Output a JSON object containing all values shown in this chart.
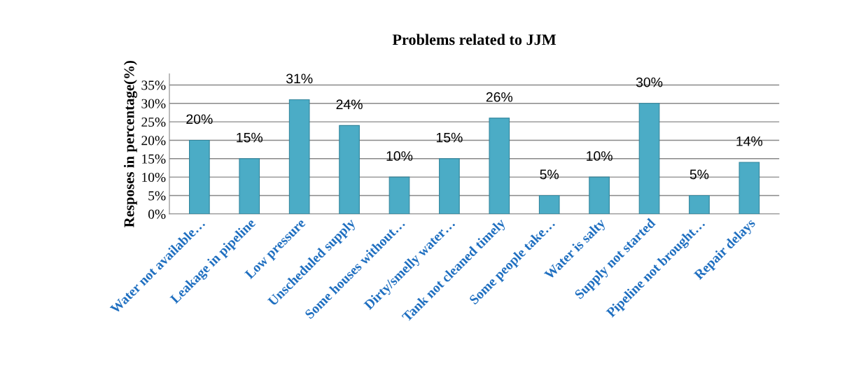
{
  "chart_data": {
    "type": "bar",
    "title": "Problems related to JJM",
    "ylabel": "Resposes in percentage(%)",
    "categories": [
      "Water not available…",
      "Leakage in pipeline",
      "Low pressure",
      "Unscheduled supply",
      "Some houses without…",
      "Dirty/smelly water…",
      "Tank not cleaned timely",
      "Some people take…",
      "Water is salty",
      "Supply not started",
      "Pipeline not brought…",
      "Repair delays"
    ],
    "values": [
      20,
      15,
      31,
      24,
      10,
      15,
      26,
      5,
      10,
      30,
      5,
      14
    ],
    "value_labels": [
      "20%",
      "15%",
      "31%",
      "24%",
      "10%",
      "15%",
      "26%",
      "5%",
      "10%",
      "30%",
      "5%",
      "14%"
    ],
    "color": "#4bacc6",
    "ylim": [
      0,
      38
    ],
    "yticks": [
      {
        "value": 0,
        "label": "0%"
      },
      {
        "value": 5,
        "label": "5%"
      },
      {
        "value": 10,
        "label": "10%"
      },
      {
        "value": 15,
        "label": "15%"
      },
      {
        "value": 20,
        "label": "20%"
      },
      {
        "value": 25,
        "label": "25%"
      },
      {
        "value": 30,
        "label": "30%"
      },
      {
        "value": 35,
        "label": "35%"
      }
    ],
    "grid": "y",
    "legend": false
  }
}
